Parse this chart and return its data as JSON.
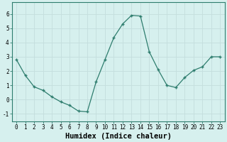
{
  "x": [
    0,
    1,
    2,
    3,
    4,
    5,
    6,
    7,
    8,
    9,
    10,
    11,
    12,
    13,
    14,
    15,
    16,
    17,
    18,
    19,
    20,
    21,
    22,
    23
  ],
  "y": [
    2.8,
    1.7,
    0.9,
    0.65,
    0.2,
    -0.15,
    -0.4,
    -0.8,
    -0.85,
    1.25,
    2.8,
    4.35,
    5.3,
    5.9,
    5.85,
    3.35,
    2.1,
    1.0,
    0.85,
    1.55,
    2.05,
    2.3,
    3.0,
    3.0
  ],
  "line_color": "#2e7d6e",
  "marker": "+",
  "marker_color": "#2e7d6e",
  "bg_color": "#d6f0ee",
  "grid_color": "#c4dedd",
  "xlabel": "Humidex (Indice chaleur)",
  "xlabel_fontsize": 7.5,
  "ylim": [
    -1.5,
    6.8
  ],
  "xlim": [
    -0.5,
    23.5
  ],
  "yticks": [
    -1,
    0,
    1,
    2,
    3,
    4,
    5,
    6
  ],
  "xticks": [
    0,
    1,
    2,
    3,
    4,
    5,
    6,
    7,
    8,
    9,
    10,
    11,
    12,
    13,
    14,
    15,
    16,
    17,
    18,
    19,
    20,
    21,
    22,
    23
  ],
  "tick_fontsize": 5.5,
  "spine_color": "#2e7d6e"
}
